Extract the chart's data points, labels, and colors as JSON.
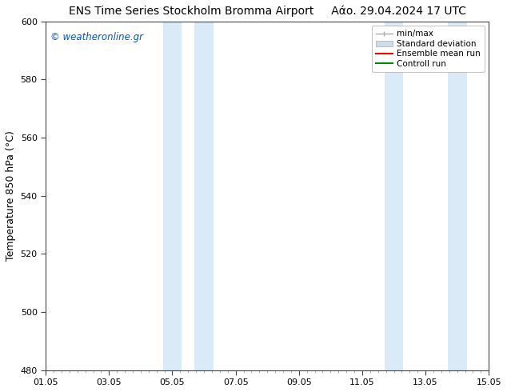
{
  "title": "ENS Time Series Stockholm Bromma Airport     Αάο. 29.04.2024 17 UTC",
  "ylabel": "Temperature 850 hPa (°C)",
  "ylim": [
    480,
    600
  ],
  "yticks": [
    480,
    500,
    520,
    540,
    560,
    580,
    600
  ],
  "xlim_start": 0.0,
  "xlim_end": 14.0,
  "xtick_labels": [
    "01.05",
    "03.05",
    "05.05",
    "07.05",
    "09.05",
    "11.05",
    "13.05",
    "15.05"
  ],
  "xtick_positions": [
    0,
    2,
    4,
    6,
    8,
    10,
    12,
    14
  ],
  "shaded_bands": [
    {
      "x_start": 3.7,
      "x_end": 4.3,
      "color": "#daeaf7"
    },
    {
      "x_start": 4.7,
      "x_end": 5.3,
      "color": "#daeaf7"
    },
    {
      "x_start": 10.7,
      "x_end": 11.3,
      "color": "#daeaf7"
    },
    {
      "x_start": 12.7,
      "x_end": 13.3,
      "color": "#daeaf7"
    }
  ],
  "watermark_text": "© weatheronline.gr",
  "watermark_color": "#0055cc",
  "bg_color": "#ffffff",
  "plot_bg_color": "#ffffff",
  "font_size_title": 10,
  "font_size_axis": 9,
  "font_size_legend": 7.5,
  "font_size_ticks": 8,
  "border_color": "#444444",
  "minmax_color": "#aaaaaa",
  "std_color": "#ccddee",
  "ensemble_color": "#ff0000",
  "control_color": "#008800"
}
